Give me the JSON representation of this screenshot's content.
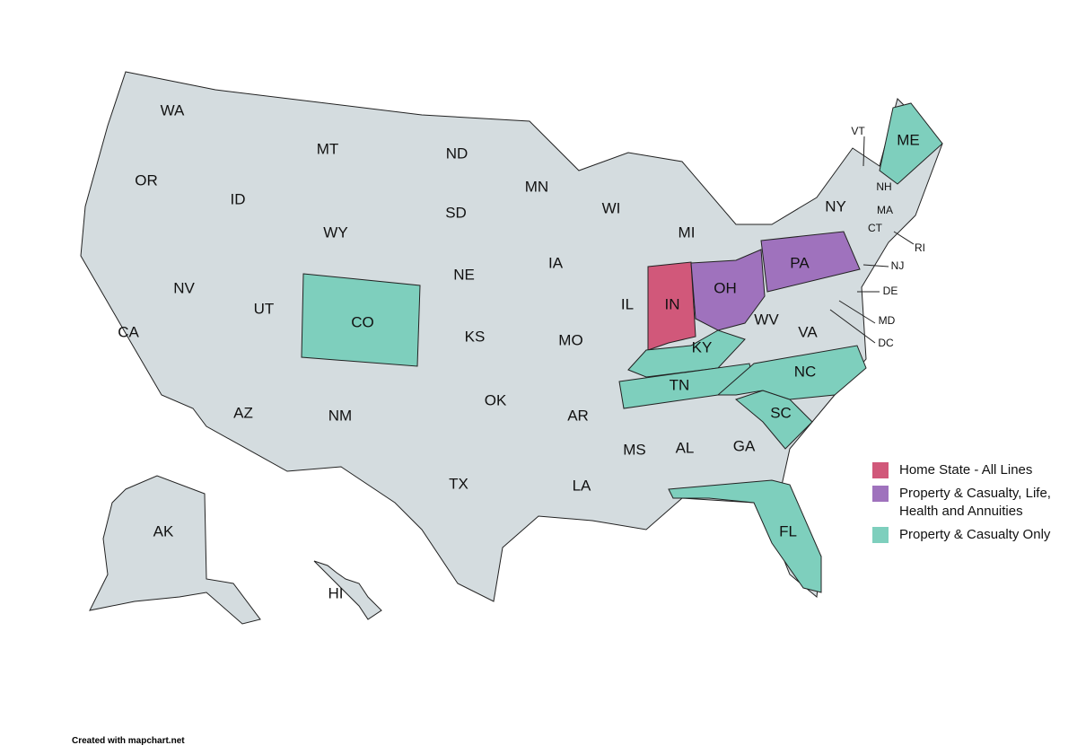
{
  "map": {
    "fill": "#d4dcdf",
    "stroke": "#222222",
    "states": [
      {
        "label": "WA"
      },
      {
        "label": "OR"
      },
      {
        "label": "CA"
      },
      {
        "label": "ID"
      },
      {
        "label": "NV"
      },
      {
        "label": "UT"
      },
      {
        "label": "AZ"
      },
      {
        "label": "MT"
      },
      {
        "label": "WY"
      },
      {
        "label": "CO",
        "color": "#7ecfbd"
      },
      {
        "label": "NM"
      },
      {
        "label": "ND"
      },
      {
        "label": "SD"
      },
      {
        "label": "NE"
      },
      {
        "label": "KS"
      },
      {
        "label": "OK"
      },
      {
        "label": "TX"
      },
      {
        "label": "MN"
      },
      {
        "label": "IA"
      },
      {
        "label": "MO"
      },
      {
        "label": "AR"
      },
      {
        "label": "LA"
      },
      {
        "label": "WI"
      },
      {
        "label": "IL"
      },
      {
        "label": "MS"
      },
      {
        "label": "AL"
      },
      {
        "label": "MI"
      },
      {
        "label": "IN",
        "color": "#d1587a"
      },
      {
        "label": "KY",
        "color": "#7ecfbd"
      },
      {
        "label": "TN",
        "color": "#7ecfbd"
      },
      {
        "label": "GA"
      },
      {
        "label": "FL",
        "color": "#7ecfbd"
      },
      {
        "label": "SC",
        "color": "#7ecfbd"
      },
      {
        "label": "NC",
        "color": "#7ecfbd"
      },
      {
        "label": "OH",
        "color": "#9f72bd"
      },
      {
        "label": "WV"
      },
      {
        "label": "VA"
      },
      {
        "label": "PA",
        "color": "#9f72bd"
      },
      {
        "label": "NY"
      },
      {
        "label": "VT"
      },
      {
        "label": "NH"
      },
      {
        "label": "ME",
        "color": "#7ecfbd"
      },
      {
        "label": "MA"
      },
      {
        "label": "CT"
      },
      {
        "label": "RI"
      },
      {
        "label": "NJ"
      },
      {
        "label": "DE"
      },
      {
        "label": "MD"
      },
      {
        "label": "DC"
      },
      {
        "label": "AK"
      },
      {
        "label": "HI"
      }
    ]
  },
  "legend": [
    {
      "label": "Home State - All Lines",
      "color": "#d1587a"
    },
    {
      "label": "Property & Casualty, Life, Health and Annuities",
      "color": "#9f72bd"
    },
    {
      "label": "Property & Casualty Only",
      "color": "#7ecfbd"
    }
  ],
  "footer": "Created with mapchart.net"
}
